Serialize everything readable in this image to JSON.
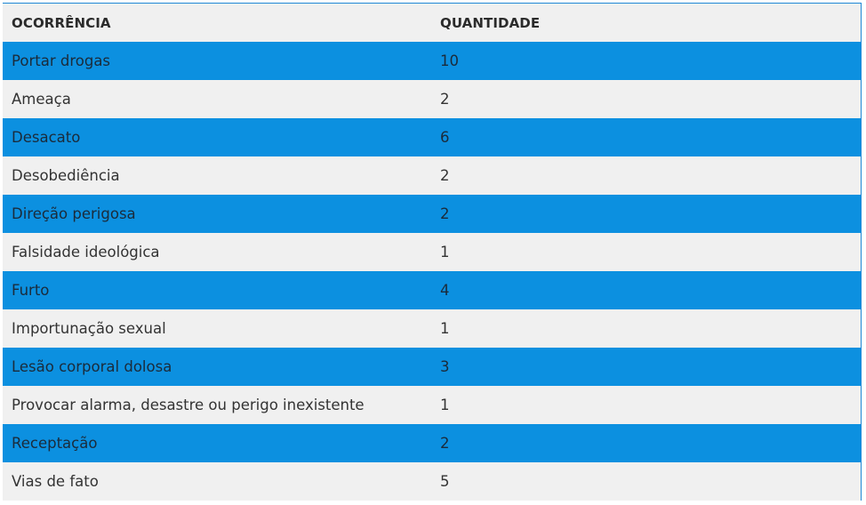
{
  "table": {
    "headers": [
      "OCORRÊNCIA",
      "QUANTIDADE"
    ],
    "rows": [
      {
        "ocorrencia": "Portar drogas",
        "quantidade": "10"
      },
      {
        "ocorrencia": "Ameaça",
        "quantidade": "2"
      },
      {
        "ocorrencia": "Desacato",
        "quantidade": "6"
      },
      {
        "ocorrencia": "Desobediência",
        "quantidade": "2"
      },
      {
        "ocorrencia": "Direção perigosa",
        "quantidade": "2"
      },
      {
        "ocorrencia": "Falsidade ideológica",
        "quantidade": "1"
      },
      {
        "ocorrencia": "Furto",
        "quantidade": "4"
      },
      {
        "ocorrencia": "Importunação sexual",
        "quantidade": "1"
      },
      {
        "ocorrencia": "Lesão corporal dolosa",
        "quantidade": "3"
      },
      {
        "ocorrencia": "Provocar alarma, desastre ou perigo inexistente",
        "quantidade": "1"
      },
      {
        "ocorrencia": "Receptação",
        "quantidade": "2"
      },
      {
        "ocorrencia": "Vias de fato",
        "quantidade": "5"
      }
    ]
  },
  "colors": {
    "stripe_blue": "#0c90e0",
    "stripe_gray": "#f0f0f0",
    "frame_border": "#1e88d6"
  }
}
